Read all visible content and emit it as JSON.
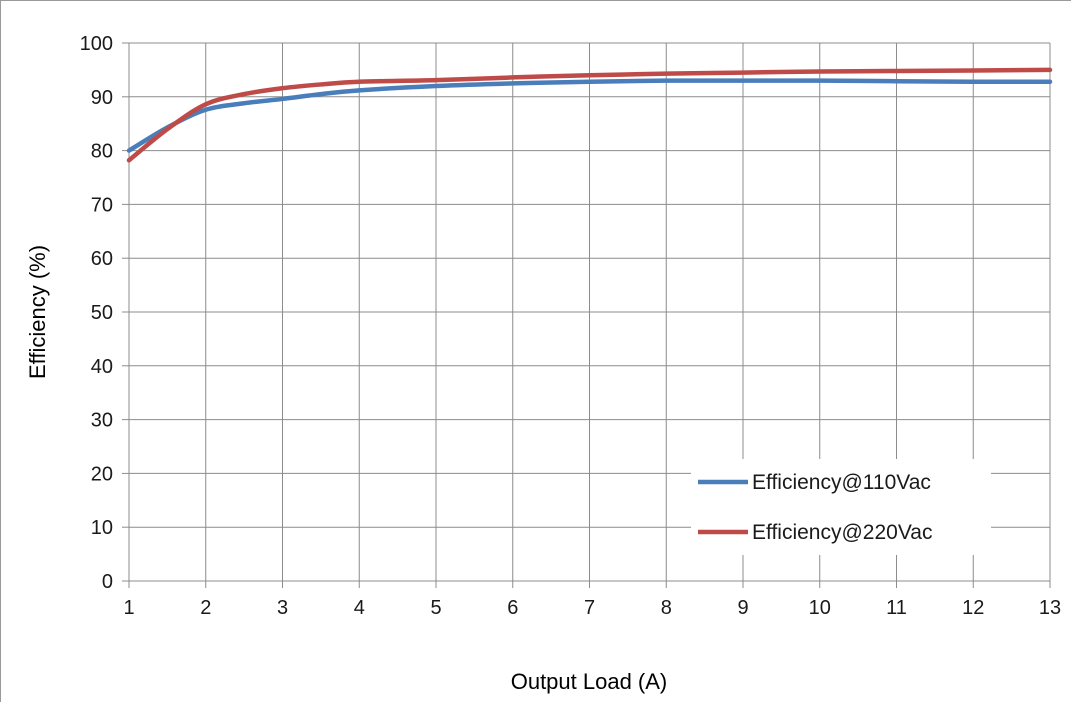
{
  "chart_data": {
    "type": "line",
    "title": "",
    "xlabel": "Output Load (A)",
    "ylabel": "Efficiency (%)",
    "xlim": [
      1,
      13
    ],
    "ylim": [
      0,
      100
    ],
    "xticks": [
      "1",
      "2",
      "3",
      "4",
      "5",
      "6",
      "7",
      "8",
      "9",
      "10",
      "11",
      "12",
      "13"
    ],
    "yticks": [
      "0",
      "10",
      "20",
      "30",
      "40",
      "50",
      "60",
      "70",
      "80",
      "90",
      "100"
    ],
    "grid": true,
    "legend_position": "bottom-right",
    "series": [
      {
        "name": "Efficiency@110Vac",
        "color": "#4a7ebb",
        "points": [
          [
            1,
            80
          ],
          [
            1.5,
            84.3
          ],
          [
            2,
            87.6
          ],
          [
            2.5,
            88.8
          ],
          [
            3,
            89.6
          ],
          [
            3.5,
            90.5
          ],
          [
            4,
            91.2
          ],
          [
            5,
            92.0
          ],
          [
            6,
            92.5
          ],
          [
            7,
            92.8
          ],
          [
            8,
            93.0
          ],
          [
            9,
            93.0
          ],
          [
            10,
            93.0
          ],
          [
            11,
            92.9
          ],
          [
            12,
            92.8
          ],
          [
            13,
            92.8
          ]
        ]
      },
      {
        "name": "Efficiency@220Vac",
        "color": "#be4b48",
        "points": [
          [
            1,
            78.2
          ],
          [
            1.5,
            84.0
          ],
          [
            2,
            88.6
          ],
          [
            2.5,
            90.5
          ],
          [
            3,
            91.6
          ],
          [
            3.5,
            92.3
          ],
          [
            4,
            92.8
          ],
          [
            5,
            93.1
          ],
          [
            6,
            93.6
          ],
          [
            7,
            94.0
          ],
          [
            8,
            94.3
          ],
          [
            9,
            94.5
          ],
          [
            10,
            94.7
          ],
          [
            11,
            94.8
          ],
          [
            12,
            94.9
          ],
          [
            13,
            95.0
          ]
        ]
      }
    ]
  }
}
